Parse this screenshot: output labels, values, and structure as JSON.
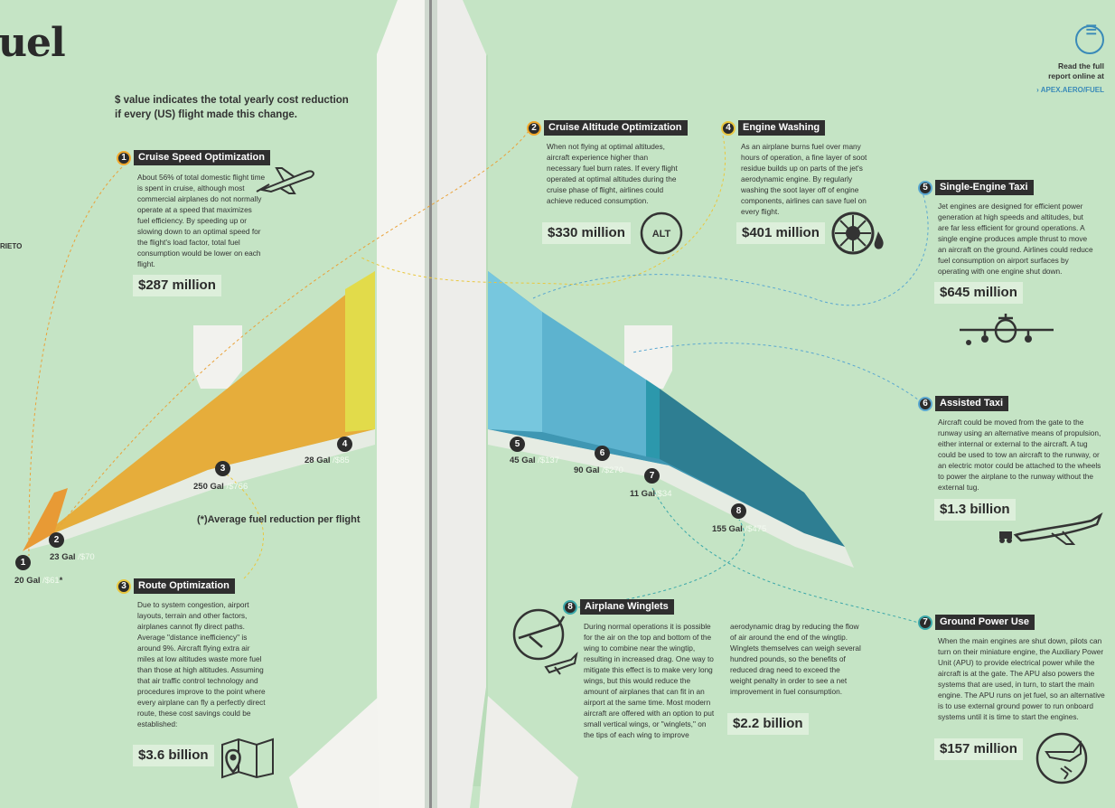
{
  "page": {
    "title_fragment": "uel",
    "side_fragment": "RIETO",
    "intro": "$ value indicates the total yearly cost reduction if every (US) flight made this change.",
    "average_note": "(*)Average fuel reduction per flight",
    "report_line1": "Read the full",
    "report_line2": "report online at",
    "report_url": "APEX.AERO/FUEL"
  },
  "icons": {
    "alt_label": "ALT"
  },
  "sections": [
    {
      "num": "1",
      "title": "Cruise Speed Optimization",
      "text": "About 56% of total domestic flight time is spent in cruise, although most commercial airplanes do not normally operate at a speed that maximizes fuel efficiency. By speeding up or slowing down to an optimal speed for the flight's load factor, total fuel consumption would be lower on each flight.",
      "savings": "$287 million"
    },
    {
      "num": "2",
      "title": "Cruise Altitude Optimization",
      "text": "When not flying at optimal altitudes, aircraft experience higher than necessary fuel burn rates. If every flight operated at optimal altitudes during the cruise phase of flight, airlines could achieve reduced consumption.",
      "savings": "$330 million"
    },
    {
      "num": "3",
      "title": "Route Optimization",
      "text": "Due to system congestion, airport layouts, terrain and other factors, airplanes cannot fly direct paths. Average \"distance inefficiency\" is around 9%. Aircraft flying extra air miles at low altitudes waste more fuel than those at high altitudes. Assuming that air traffic control technology and procedures improve to the point where every airplane can fly a perfectly direct route, these cost savings could be established:",
      "savings": "$3.6 billion"
    },
    {
      "num": "4",
      "title": "Engine Washing",
      "text": "As an airplane burns fuel over many hours of operation, a fine layer of soot residue builds up on parts of the jet's aerodynamic engine. By regularly washing the soot layer off of engine components, airlines can save fuel on every flight.",
      "savings": "$401 million"
    },
    {
      "num": "5",
      "title": "Single-Engine Taxi",
      "text": "Jet engines are designed for efficient power generation at high speeds and altitudes, but are far less efficient for ground operations. A single engine produces ample thrust to move an aircraft on the ground. Airlines could reduce fuel consumption on airport surfaces by operating with one engine shut down.",
      "savings": "$645 million"
    },
    {
      "num": "6",
      "title": "Assisted Taxi",
      "text": "Aircraft could be moved from the gate to the runway using an alternative means of propulsion, either internal or external to the aircraft. A tug could be used to tow an aircraft to the runway, or an electric motor could be attached to the wheels to power the airplane to the runway without the external tug.",
      "savings": "$1.3 billion"
    },
    {
      "num": "7",
      "title": "Ground Power Use",
      "text": "When the main engines are shut down, pilots can turn on their miniature engine, the Auxiliary Power Unit (APU) to provide electrical power while the aircraft is at the gate. The APU also powers the systems that are used, in turn, to start the main engine. The APU runs on jet fuel, so an alternative is to use external ground power to run onboard systems until it is time to start the engines.",
      "savings": "$157 million"
    },
    {
      "num": "8",
      "title": "Airplane Winglets",
      "text": "During normal operations it is possible for the air on the top and bottom of the wing to combine near the wingtip, resulting in increased drag. One way to mitigate this effect is to make very long wings, but this would reduce the amount of airplanes that can fit in an airport at the same time. Most modern aircraft are offered with an option to put small vertical wings, or \"winglets,\" on the tips of each wing to improve",
      "text2": "aerodynamic drag by reducing the flow of air around the end of the wingtip. Winglets themselves can weigh several hundred pounds, so the benefits of reduced drag need to exceed the weight penalty in order to see a net improvement in fuel consumption.",
      "savings": "$2.2 billion"
    }
  ],
  "wing_labels": [
    {
      "num": "1",
      "gal": "20 Gal ",
      "cost": "/$61",
      "star": "*"
    },
    {
      "num": "2",
      "gal": "23 Gal ",
      "cost": "/$70"
    },
    {
      "num": "3",
      "gal": "250 Gal ",
      "cost": "/$766"
    },
    {
      "num": "4",
      "gal": "28 Gal ",
      "cost": "/$85"
    },
    {
      "num": "5",
      "gal": "45 Gal ",
      "cost": "/$137"
    },
    {
      "num": "6",
      "gal": "90 Gal ",
      "cost": "/$270"
    },
    {
      "num": "7",
      "gal": "11 Gal",
      "cost": "/$34"
    },
    {
      "num": "8",
      "gal": "155 Gal ",
      "cost": "/$475"
    }
  ],
  "colors": {
    "background": "#c5e4c5",
    "left_wing": "#e6ad3b",
    "right_wing": "#3f97b3",
    "label_bg": "#2f2f2f"
  }
}
